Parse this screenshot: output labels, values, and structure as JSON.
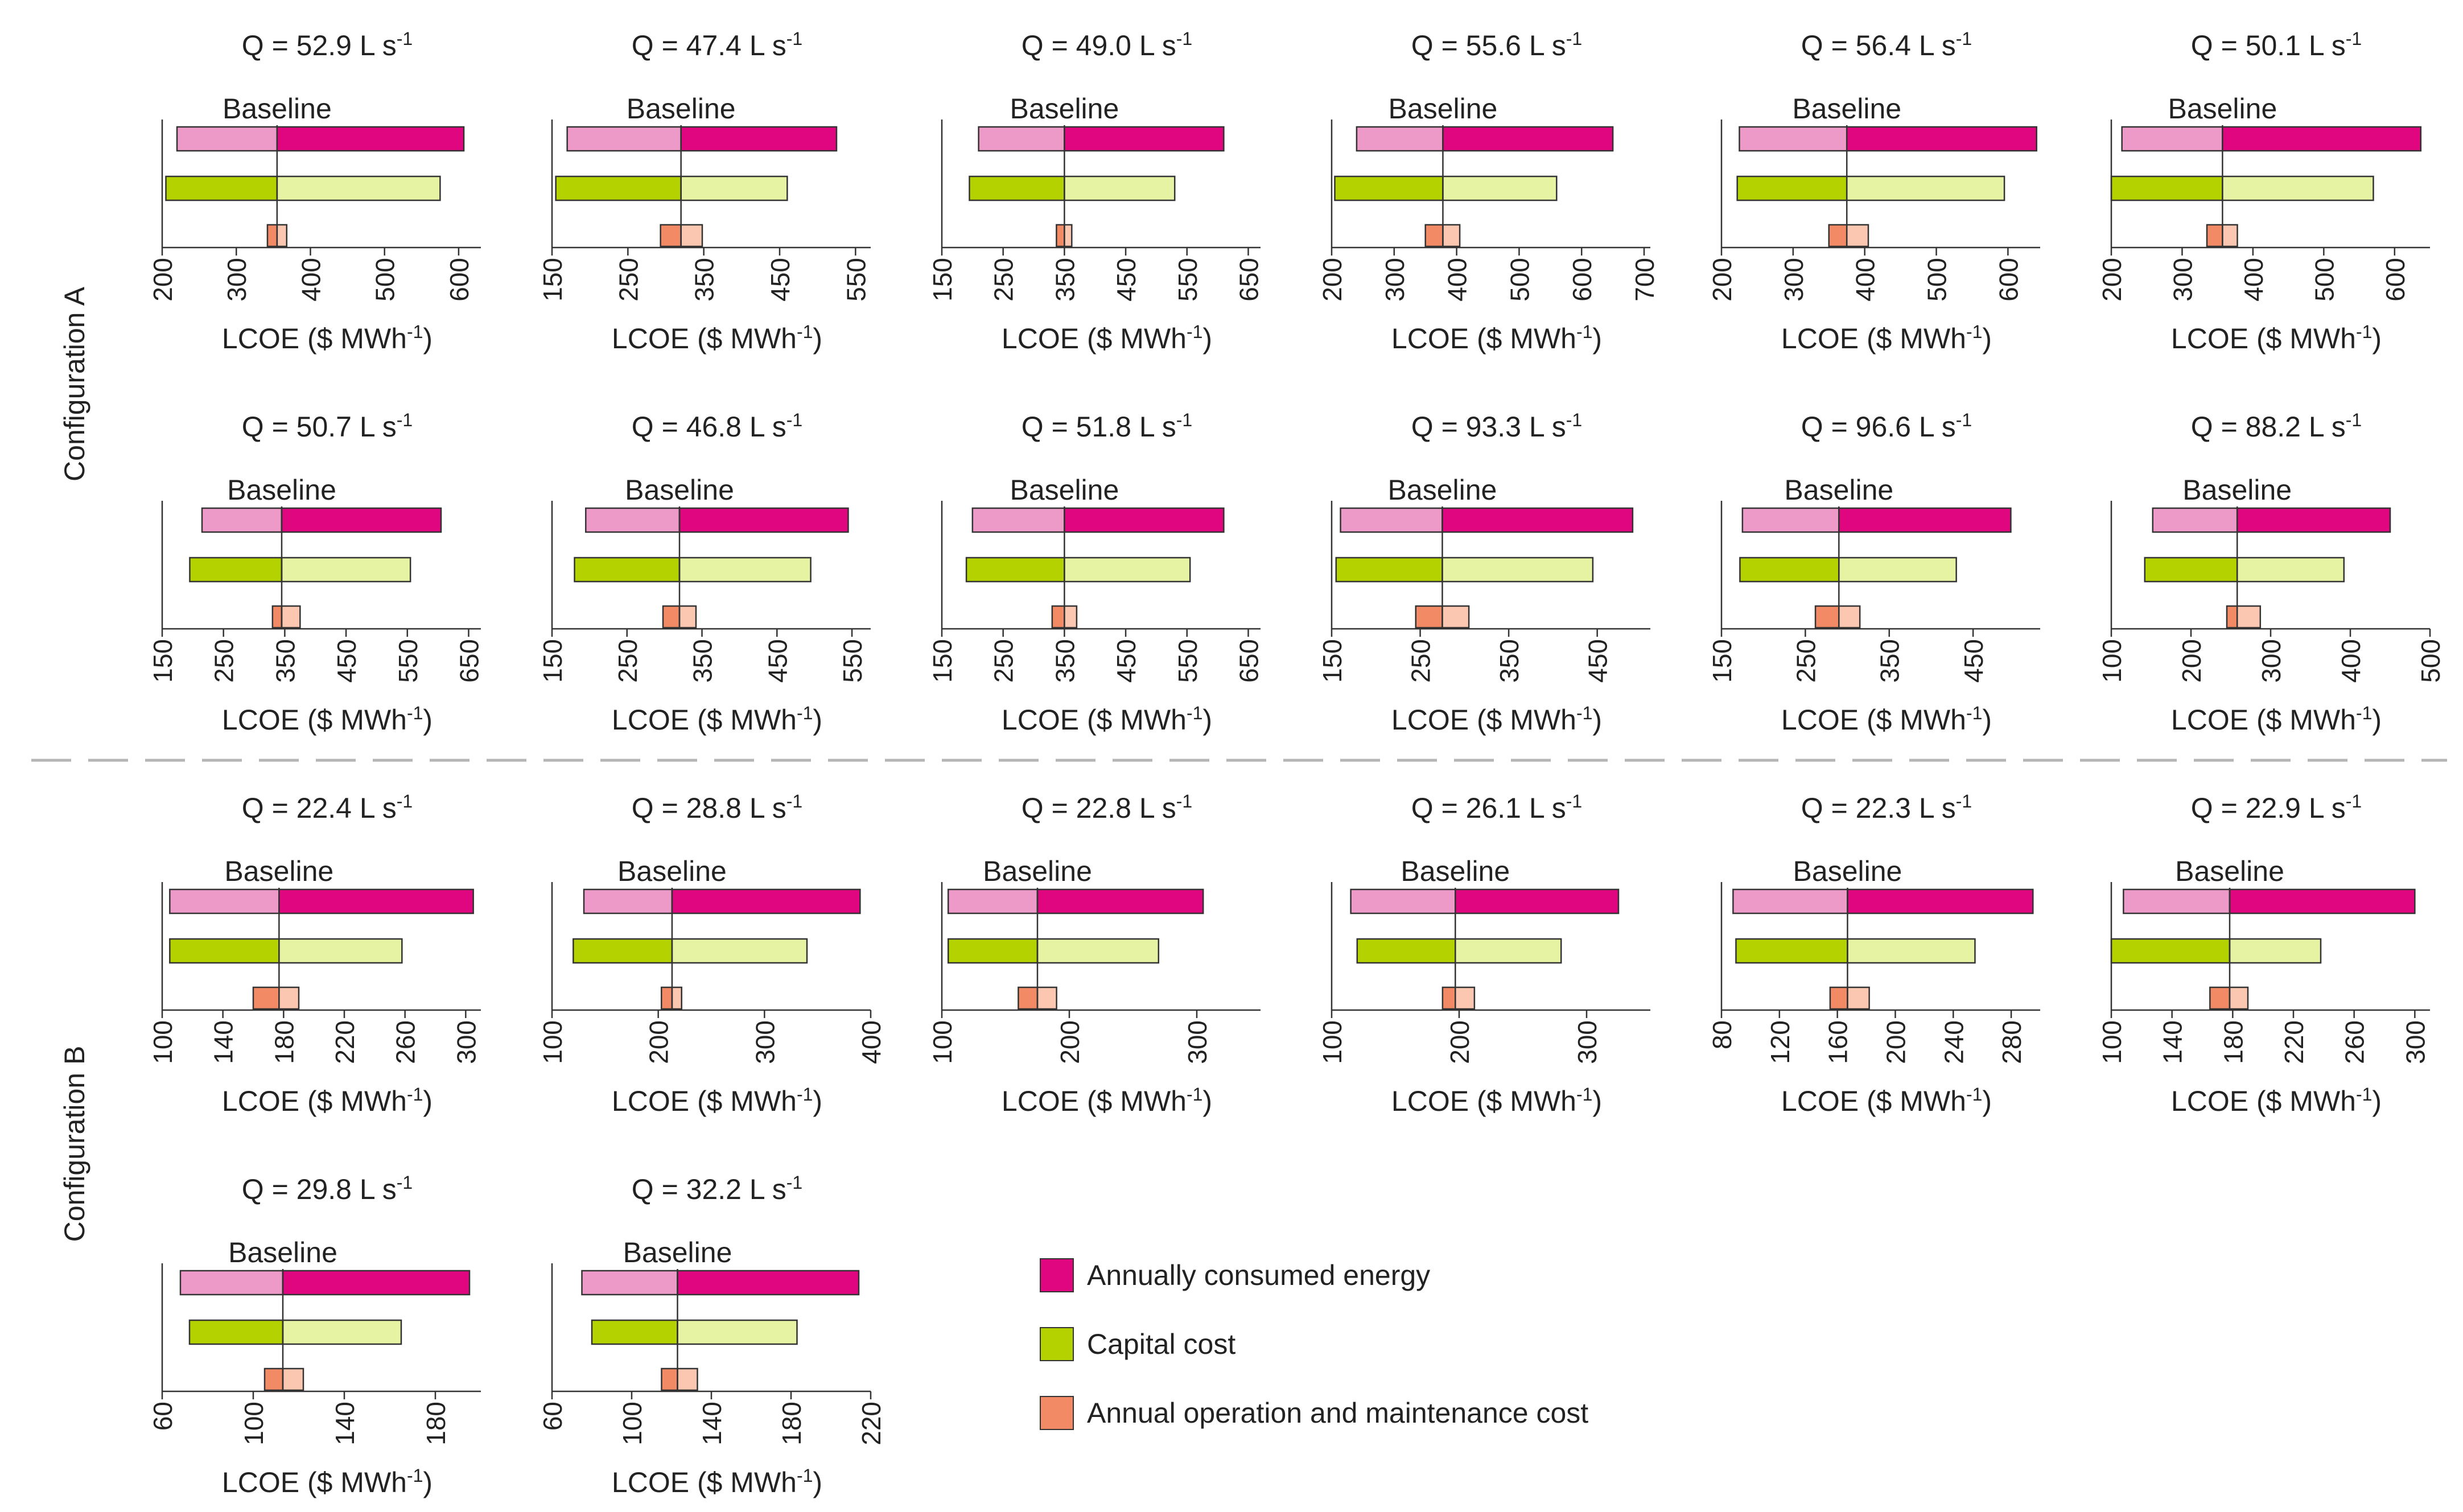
{
  "figure": {
    "section_labels": [
      "Configuration A",
      "Configuration B"
    ],
    "common_xlabel": "LCOE ($ MWh⁻¹)",
    "baseline_label": "Baseline"
  },
  "legend": {
    "items": [
      {
        "label": "Annually consumed energy",
        "color": "#e0067f"
      },
      {
        "label": "Capital cost",
        "color": "#b4d200"
      },
      {
        "label": "Annual operation and maintenance cost",
        "color": "#f28a66"
      }
    ]
  },
  "colors": {
    "energy_dark": "#e0067f",
    "energy_light": "#ee9ac8",
    "capital_dark": "#b4d200",
    "capital_light": "#e6f3a3",
    "om_dark": "#f28a66",
    "om_light": "#fbc7b0"
  },
  "chart_data": [
    {
      "type": "tornado",
      "config": "A",
      "title": "Q = 52.9 L s",
      "title_sup": "-1",
      "xlim": [
        200,
        630
      ],
      "ticks": [
        200,
        300,
        400,
        500,
        600
      ],
      "baseline": 355,
      "energy": [
        220,
        607
      ],
      "capital": [
        205,
        575
      ],
      "om": [
        342,
        368
      ],
      "xlabel": "LCOE ($ MWh",
      "xlabel_sup": "-1",
      "xlabel_end": ")"
    },
    {
      "type": "tornado",
      "config": "A",
      "title": "Q = 47.4 L s",
      "title_sup": "-1",
      "xlim": [
        150,
        570
      ],
      "ticks": [
        150,
        250,
        350,
        450,
        550
      ],
      "baseline": 320,
      "energy": [
        170,
        525
      ],
      "capital": [
        155,
        460
      ],
      "om": [
        293,
        348
      ],
      "xlabel": "LCOE ($ MWh",
      "xlabel_sup": "-1",
      "xlabel_end": ")"
    },
    {
      "type": "tornado",
      "config": "A",
      "title": "Q = 49.0 L s",
      "title_sup": "-1",
      "xlim": [
        150,
        670
      ],
      "ticks": [
        150,
        250,
        350,
        450,
        550,
        650
      ],
      "baseline": 350,
      "energy": [
        210,
        610
      ],
      "capital": [
        195,
        530
      ],
      "om": [
        337,
        362
      ],
      "xlabel": "LCOE ($ MWh",
      "xlabel_sup": "-1",
      "xlabel_end": ")"
    },
    {
      "type": "tornado",
      "config": "A",
      "title": "Q = 55.6 L s",
      "title_sup": "-1",
      "xlim": [
        200,
        710
      ],
      "ticks": [
        200,
        300,
        400,
        500,
        600,
        700
      ],
      "baseline": 378,
      "energy": [
        240,
        650
      ],
      "capital": [
        205,
        560
      ],
      "om": [
        350,
        405
      ],
      "xlabel": "LCOE ($ MWh",
      "xlabel_sup": "-1",
      "xlabel_end": ")"
    },
    {
      "type": "tornado",
      "config": "A",
      "title": "Q = 56.4 L s",
      "title_sup": "-1",
      "xlim": [
        200,
        645
      ],
      "ticks": [
        200,
        300,
        400,
        500,
        600
      ],
      "baseline": 375,
      "energy": [
        225,
        640
      ],
      "capital": [
        222,
        595
      ],
      "om": [
        350,
        405
      ],
      "xlabel": "LCOE ($ MWh",
      "xlabel_sup": "-1",
      "xlabel_end": ")"
    },
    {
      "type": "tornado",
      "config": "A",
      "title": "Q = 50.1 L s",
      "title_sup": "-1",
      "xlim": [
        200,
        650
      ],
      "ticks": [
        200,
        300,
        400,
        500,
        600
      ],
      "baseline": 357,
      "energy": [
        215,
        637
      ],
      "capital": [
        200,
        570
      ],
      "om": [
        335,
        378
      ],
      "xlabel": "LCOE ($ MWh",
      "xlabel_sup": "-1",
      "xlabel_end": ")"
    },
    {
      "type": "tornado",
      "config": "A",
      "title": "Q = 50.7 L s",
      "title_sup": "-1",
      "xlim": [
        150,
        670
      ],
      "ticks": [
        150,
        250,
        350,
        450,
        550,
        650
      ],
      "baseline": 345,
      "energy": [
        215,
        605
      ],
      "capital": [
        195,
        555
      ],
      "om": [
        330,
        375
      ],
      "xlabel": "LCOE ($ MWh",
      "xlabel_sup": "-1",
      "xlabel_end": ")"
    },
    {
      "type": "tornado",
      "config": "A",
      "title": "Q = 46.8 L s",
      "title_sup": "-1",
      "xlim": [
        150,
        575
      ],
      "ticks": [
        150,
        250,
        350,
        450,
        550
      ],
      "baseline": 320,
      "energy": [
        195,
        545
      ],
      "capital": [
        180,
        495
      ],
      "om": [
        298,
        342
      ],
      "xlabel": "LCOE ($ MWh",
      "xlabel_sup": "-1",
      "xlabel_end": ")"
    },
    {
      "type": "tornado",
      "config": "A",
      "title": "Q = 51.8 L s",
      "title_sup": "-1",
      "xlim": [
        150,
        670
      ],
      "ticks": [
        150,
        250,
        350,
        450,
        550,
        650
      ],
      "baseline": 350,
      "energy": [
        200,
        610
      ],
      "capital": [
        190,
        555
      ],
      "om": [
        330,
        370
      ],
      "xlabel": "LCOE ($ MWh",
      "xlabel_sup": "-1",
      "xlabel_end": ")"
    },
    {
      "type": "tornado",
      "config": "A",
      "title": "Q = 93.3 L s",
      "title_sup": "-1",
      "xlim": [
        150,
        510
      ],
      "ticks": [
        150,
        250,
        350,
        450
      ],
      "baseline": 275,
      "energy": [
        160,
        490
      ],
      "capital": [
        155,
        445
      ],
      "om": [
        245,
        305
      ],
      "xlabel": "LCOE ($ MWh",
      "xlabel_sup": "-1",
      "xlabel_end": ")"
    },
    {
      "type": "tornado",
      "config": "A",
      "title": "Q = 96.6 L s",
      "title_sup": "-1",
      "xlim": [
        150,
        530
      ],
      "ticks": [
        150,
        250,
        350,
        450
      ],
      "baseline": 290,
      "energy": [
        175,
        495
      ],
      "capital": [
        172,
        430
      ],
      "om": [
        262,
        315
      ],
      "xlabel": "LCOE ($ MWh",
      "xlabel_sup": "-1",
      "xlabel_end": ")"
    },
    {
      "type": "tornado",
      "config": "A",
      "title": "Q = 88.2 L s",
      "title_sup": "-1",
      "xlim": [
        100,
        500
      ],
      "ticks": [
        100,
        200,
        300,
        400,
        500
      ],
      "baseline": 258,
      "energy": [
        152,
        450
      ],
      "capital": [
        142,
        392
      ],
      "om": [
        245,
        287
      ],
      "xlabel": "LCOE ($ MWh",
      "xlabel_sup": "-1",
      "xlabel_end": ")"
    },
    {
      "type": "tornado",
      "config": "B",
      "title": "Q = 22.4 L s",
      "title_sup": "-1",
      "xlim": [
        100,
        310
      ],
      "ticks": [
        100,
        140,
        180,
        220,
        260,
        300
      ],
      "baseline": 177,
      "energy": [
        105,
        305
      ],
      "capital": [
        105,
        258
      ],
      "om": [
        160,
        190
      ],
      "xlabel": "LCOE ($ MWh",
      "xlabel_sup": "-1",
      "xlabel_end": ")"
    },
    {
      "type": "tornado",
      "config": "B",
      "title": "Q = 28.8 L s",
      "title_sup": "-1",
      "xlim": [
        100,
        400
      ],
      "ticks": [
        100,
        200,
        300,
        400
      ],
      "baseline": 213,
      "energy": [
        130,
        390
      ],
      "capital": [
        120,
        340
      ],
      "om": [
        203,
        222
      ],
      "xlabel": "LCOE ($ MWh",
      "xlabel_sup": "-1",
      "xlabel_end": ")"
    },
    {
      "type": "tornado",
      "config": "B",
      "title": "Q = 22.8 L s",
      "title_sup": "-1",
      "xlim": [
        100,
        350
      ],
      "ticks": [
        100,
        200,
        300
      ],
      "baseline": 175,
      "energy": [
        105,
        305
      ],
      "capital": [
        105,
        270
      ],
      "om": [
        160,
        190
      ],
      "xlabel": "LCOE ($ MWh",
      "xlabel_sup": "-1",
      "xlabel_end": ")"
    },
    {
      "type": "tornado",
      "config": "B",
      "title": "Q = 26.1 L s",
      "title_sup": "-1",
      "xlim": [
        100,
        350
      ],
      "ticks": [
        100,
        200,
        300
      ],
      "baseline": 197,
      "energy": [
        115,
        325
      ],
      "capital": [
        120,
        280
      ],
      "om": [
        187,
        212
      ],
      "xlabel": "LCOE ($ MWh",
      "xlabel_sup": "-1",
      "xlabel_end": ")"
    },
    {
      "type": "tornado",
      "config": "B",
      "title": "Q = 22.3 L s",
      "title_sup": "-1",
      "xlim": [
        80,
        300
      ],
      "ticks": [
        80,
        120,
        160,
        200,
        240,
        280
      ],
      "baseline": 167,
      "energy": [
        88,
        295
      ],
      "capital": [
        90,
        255
      ],
      "om": [
        155,
        182
      ],
      "xlabel": "LCOE ($ MWh",
      "xlabel_sup": "-1",
      "xlabel_end": ")"
    },
    {
      "type": "tornado",
      "config": "B",
      "title": "Q = 22.9 L s",
      "title_sup": "-1",
      "xlim": [
        100,
        310
      ],
      "ticks": [
        100,
        140,
        180,
        220,
        260,
        300
      ],
      "baseline": 178,
      "energy": [
        108,
        300
      ],
      "capital": [
        100,
        238
      ],
      "om": [
        165,
        190
      ],
      "xlabel": "LCOE ($ MWh",
      "xlabel_sup": "-1",
      "xlabel_end": ")"
    },
    {
      "type": "tornado",
      "config": "B",
      "title": "Q = 29.8 L s",
      "title_sup": "-1",
      "xlim": [
        60,
        200
      ],
      "ticks": [
        60,
        100,
        140,
        180
      ],
      "baseline": 113,
      "energy": [
        68,
        195
      ],
      "capital": [
        72,
        165
      ],
      "om": [
        105,
        122
      ],
      "xlabel": "LCOE ($ MWh",
      "xlabel_sup": "-1",
      "xlabel_end": ")"
    },
    {
      "type": "tornado",
      "config": "B",
      "title": "Q = 32.2 L s",
      "title_sup": "-1",
      "xlim": [
        60,
        220
      ],
      "ticks": [
        60,
        100,
        140,
        180,
        220
      ],
      "baseline": 123,
      "energy": [
        75,
        214
      ],
      "capital": [
        80,
        183
      ],
      "om": [
        115,
        133
      ],
      "xlabel": "LCOE ($ MWh",
      "xlabel_sup": "-1",
      "xlabel_end": ")"
    }
  ]
}
